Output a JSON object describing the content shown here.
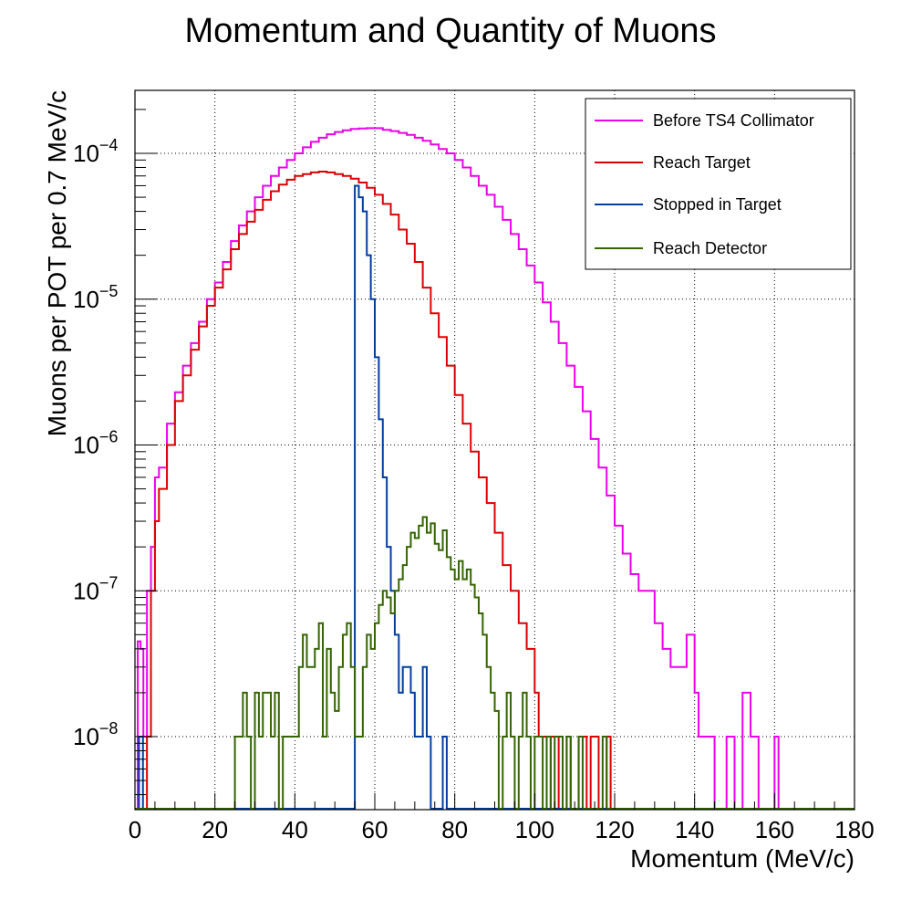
{
  "chart_data": {
    "type": "line",
    "title": "Momentum and Quantity of Muons",
    "xlabel": "Momentum (MeV/c)",
    "ylabel": "Muons per POT per 0.7 MeV/c",
    "xlim": [
      0,
      180
    ],
    "ylim": [
      3.2e-09,
      0.00027
    ],
    "y_scale": "log",
    "grid": true,
    "legend_position": "top-right",
    "x_ticks": [
      "0",
      "20",
      "40",
      "60",
      "80",
      "100",
      "120",
      "140",
      "160",
      "180"
    ],
    "y_ticks": [
      {
        "value": 1e-08,
        "base": "10",
        "exp": "−8"
      },
      {
        "value": 1e-07,
        "base": "10",
        "exp": "−7"
      },
      {
        "value": 1e-06,
        "base": "10",
        "exp": "−6"
      },
      {
        "value": 1e-05,
        "base": "10",
        "exp": "−5"
      },
      {
        "value": 0.0001,
        "base": "10",
        "exp": "−4"
      }
    ],
    "series": [
      {
        "name": "Before TS4 Collimator",
        "color": "#ee00ee",
        "x": [
          0,
          0.7,
          1.4,
          2.1,
          3,
          4,
          5,
          6,
          8,
          10,
          12,
          14,
          16,
          18,
          20,
          22,
          24,
          26,
          28,
          30,
          32,
          34,
          36,
          38,
          40,
          42,
          44,
          46,
          48,
          50,
          52,
          54,
          56,
          58,
          60,
          62,
          64,
          66,
          68,
          70,
          72,
          74,
          76,
          78,
          80,
          82,
          84,
          86,
          88,
          90,
          92,
          94,
          96,
          98,
          100,
          102,
          104,
          106,
          108,
          110,
          112,
          114,
          116,
          118,
          120,
          122,
          124,
          126,
          128,
          130,
          132,
          134,
          136,
          138,
          140,
          141,
          142,
          143,
          144,
          145,
          146,
          147,
          148,
          149,
          150,
          151,
          152,
          153,
          154,
          155,
          156,
          157,
          158,
          159,
          160,
          161,
          162,
          180
        ],
        "y": [
          3.2e-09,
          4.5e-08,
          4e-08,
          1e-08,
          1e-07,
          2e-07,
          6e-07,
          7e-07,
          1.4e-06,
          2.3e-06,
          3.5e-06,
          5e-06,
          7e-06,
          1e-05,
          1.3e-05,
          1.8e-05,
          2.5e-05,
          3.2e-05,
          4e-05,
          5e-05,
          6e-05,
          7e-05,
          8e-05,
          9e-05,
          0.0001,
          0.00011,
          0.00012,
          0.000128,
          0.000135,
          0.00014,
          0.000144,
          0.000147,
          0.000148,
          0.000149,
          0.000149,
          0.000145,
          0.000142,
          0.000138,
          0.000134,
          0.000128,
          0.000122,
          0.000115,
          0.000107,
          0.0001,
          9e-05,
          8e-05,
          7e-05,
          6e-05,
          5.2e-05,
          4.3e-05,
          3.5e-05,
          2.8e-05,
          2.2e-05,
          1.7e-05,
          1.3e-05,
          9.5e-06,
          7e-06,
          5e-06,
          3.5e-06,
          2.5e-06,
          1.7e-06,
          1.1e-06,
          7e-07,
          4.5e-07,
          2.8e-07,
          1.8e-07,
          1.3e-07,
          1e-07,
          1e-07,
          6e-08,
          4e-08,
          3e-08,
          3e-08,
          5e-08,
          2e-08,
          1e-08,
          1e-08,
          1e-08,
          1e-08,
          3.2e-09,
          3.2e-09,
          3.2e-09,
          1e-08,
          1e-08,
          3.2e-09,
          3.2e-09,
          2e-08,
          2e-08,
          1e-08,
          1e-08,
          3.2e-09,
          3.2e-09,
          3.2e-09,
          3.2e-09,
          1e-08,
          3.2e-09,
          3.2e-09,
          3.2e-09
        ]
      },
      {
        "name": "Reach Target",
        "color": "#dd0000",
        "x": [
          0,
          3,
          4,
          5,
          6,
          8,
          10,
          12,
          14,
          16,
          18,
          20,
          22,
          24,
          26,
          28,
          30,
          32,
          34,
          36,
          38,
          40,
          42,
          44,
          46,
          48,
          50,
          52,
          54,
          56,
          58,
          60,
          62,
          64,
          66,
          68,
          70,
          72,
          74,
          76,
          78,
          80,
          82,
          84,
          86,
          88,
          90,
          92,
          94,
          96,
          98,
          100,
          101,
          102,
          103,
          104,
          105,
          106,
          107,
          108,
          109,
          110,
          111,
          112,
          113,
          114,
          115,
          116,
          117,
          118,
          119,
          120,
          180
        ],
        "y": [
          3.2e-09,
          1e-08,
          1e-07,
          3e-07,
          5e-07,
          1e-06,
          2e-06,
          3e-06,
          4.5e-06,
          6.5e-06,
          9e-06,
          1.2e-05,
          1.6e-05,
          2.2e-05,
          2.8e-05,
          3.4e-05,
          4.1e-05,
          4.8e-05,
          5.5e-05,
          6.1e-05,
          6.6e-05,
          7e-05,
          7.2e-05,
          7.4e-05,
          7.5e-05,
          7.4e-05,
          7.2e-05,
          7e-05,
          6.7e-05,
          6.3e-05,
          5.8e-05,
          5.2e-05,
          4.5e-05,
          3.8e-05,
          3e-05,
          2.4e-05,
          1.8e-05,
          1.2e-05,
          8e-06,
          5.5e-06,
          3.5e-06,
          2.2e-06,
          1.4e-06,
          9e-07,
          6e-07,
          4e-07,
          2.5e-07,
          1.5e-07,
          1e-07,
          6e-08,
          4e-08,
          2e-08,
          1e-08,
          1e-08,
          3.2e-09,
          1e-08,
          1e-08,
          3.2e-09,
          3.2e-09,
          1e-08,
          3.2e-09,
          3.2e-09,
          1e-08,
          1e-08,
          3.2e-09,
          1e-08,
          1e-08,
          3.2e-09,
          3.2e-09,
          1e-08,
          3.2e-09,
          3.2e-09,
          3.2e-09
        ]
      },
      {
        "name": "Stopped in Target",
        "color": "#003fa0",
        "x": [
          0,
          1,
          2,
          3,
          40,
          42,
          44,
          46,
          48,
          50,
          52,
          54,
          55,
          56,
          57,
          58,
          59,
          60,
          61,
          62,
          63,
          64,
          65,
          66,
          67,
          68,
          69,
          70,
          71,
          72,
          73,
          74,
          75,
          76,
          77,
          78,
          180
        ],
        "y": [
          3.2e-09,
          1e-08,
          3.2e-09,
          3.2e-09,
          3.2e-09,
          3.2e-09,
          3.2e-09,
          3.2e-09,
          3.2e-09,
          3.2e-09,
          3.2e-09,
          3.2e-09,
          6e-05,
          5e-05,
          4e-05,
          2e-05,
          1e-05,
          4e-06,
          1.5e-06,
          6e-07,
          2e-07,
          1e-07,
          5e-08,
          2e-08,
          3e-08,
          3e-08,
          2e-08,
          1e-08,
          1e-08,
          3e-08,
          1e-08,
          3.2e-09,
          3.2e-09,
          3.2e-09,
          1e-08,
          3.2e-09,
          3.2e-09
        ]
      },
      {
        "name": "Reach Detector",
        "color": "#336600",
        "x": [
          0,
          25,
          26,
          27,
          28,
          29,
          30,
          31,
          32,
          33,
          34,
          35,
          36,
          37,
          38,
          39,
          40,
          41,
          42,
          43,
          44,
          45,
          46,
          47,
          48,
          49,
          50,
          51,
          52,
          53,
          54,
          55,
          56,
          57,
          58,
          59,
          60,
          61,
          62,
          63,
          64,
          65,
          66,
          67,
          68,
          69,
          70,
          71,
          72,
          73,
          74,
          75,
          76,
          77,
          78,
          79,
          80,
          81,
          82,
          83,
          84,
          85,
          86,
          87,
          88,
          89,
          90,
          91,
          92,
          93,
          94,
          95,
          96,
          97,
          98,
          99,
          100,
          101,
          102,
          103,
          104,
          105,
          106,
          107,
          108,
          109,
          110,
          111,
          112,
          113,
          114,
          115,
          116,
          117,
          118,
          119,
          180
        ],
        "y": [
          3.2e-09,
          1e-08,
          1e-08,
          2e-08,
          1e-08,
          3.2e-09,
          2e-08,
          1e-08,
          2e-08,
          2e-08,
          1e-08,
          2e-08,
          3.2e-09,
          1e-08,
          1e-08,
          1e-08,
          1e-08,
          3e-08,
          5e-08,
          3e-08,
          3e-08,
          4e-08,
          6e-08,
          1e-08,
          4e-08,
          2e-08,
          1.5e-08,
          3e-08,
          5e-08,
          6e-08,
          3e-08,
          1e-08,
          1e-08,
          3e-08,
          5e-08,
          4e-08,
          6e-08,
          8e-08,
          1e-07,
          9e-08,
          7e-08,
          1e-07,
          1.2e-07,
          1.5e-07,
          2e-07,
          2.5e-07,
          2.3e-07,
          2.8e-07,
          3.2e-07,
          2.5e-07,
          2.9e-07,
          2.1e-07,
          1.9e-07,
          2.6e-07,
          1.7e-07,
          1.4e-07,
          1.2e-07,
          1.6e-07,
          1.2e-07,
          1.4e-07,
          1.1e-07,
          9e-08,
          7e-08,
          5e-08,
          3e-08,
          2e-08,
          1.5e-08,
          3.2e-09,
          1e-08,
          2e-08,
          1e-08,
          3.2e-09,
          1e-08,
          2e-08,
          1e-08,
          3.2e-09,
          1e-08,
          1e-08,
          3.2e-09,
          1e-08,
          3.2e-09,
          1e-08,
          1e-08,
          3.2e-09,
          1e-08,
          3.2e-09,
          3.2e-09,
          1e-08,
          3.2e-09,
          3.2e-09,
          3.2e-09,
          3.2e-09,
          3.2e-09,
          1e-08,
          3.2e-09,
          3.2e-09,
          3.2e-09
        ]
      }
    ]
  }
}
